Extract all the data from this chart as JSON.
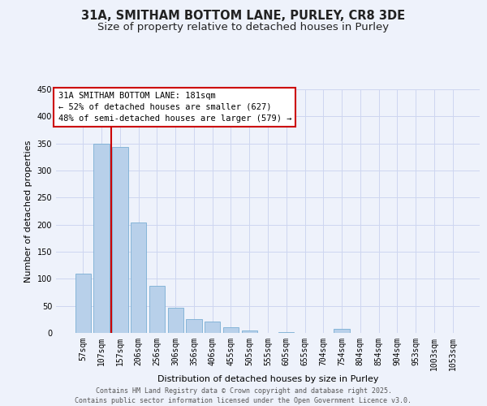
{
  "title": "31A, SMITHAM BOTTOM LANE, PURLEY, CR8 3DE",
  "subtitle": "Size of property relative to detached houses in Purley",
  "xlabel": "Distribution of detached houses by size in Purley",
  "ylabel": "Number of detached properties",
  "categories": [
    "57sqm",
    "107sqm",
    "157sqm",
    "206sqm",
    "256sqm",
    "306sqm",
    "356sqm",
    "406sqm",
    "455sqm",
    "505sqm",
    "555sqm",
    "605sqm",
    "655sqm",
    "704sqm",
    "754sqm",
    "804sqm",
    "854sqm",
    "904sqm",
    "953sqm",
    "1003sqm",
    "1053sqm"
  ],
  "bar_values": [
    110,
    349,
    343,
    204,
    87,
    47,
    25,
    21,
    11,
    5,
    0,
    2,
    0,
    0,
    7,
    0,
    0,
    0,
    0,
    0,
    0
  ],
  "bar_color": "#b8d0ea",
  "bar_edge_color": "#7aaed4",
  "background_color": "#eef2fb",
  "grid_color": "#cdd6f0",
  "vline_color": "#cc0000",
  "annotation_box_text": "31A SMITHAM BOTTOM LANE: 181sqm\n← 52% of detached houses are smaller (627)\n48% of semi-detached houses are larger (579) →",
  "annotation_box_color": "#cc0000",
  "annotation_box_bg": "#ffffff",
  "ylim": [
    0,
    450
  ],
  "yticks": [
    0,
    50,
    100,
    150,
    200,
    250,
    300,
    350,
    400,
    450
  ],
  "footer_line1": "Contains HM Land Registry data © Crown copyright and database right 2025.",
  "footer_line2": "Contains public sector information licensed under the Open Government Licence v3.0.",
  "title_fontsize": 10.5,
  "subtitle_fontsize": 9.5,
  "axis_label_fontsize": 8,
  "tick_fontsize": 7,
  "annotation_fontsize": 7.5,
  "footer_fontsize": 6
}
